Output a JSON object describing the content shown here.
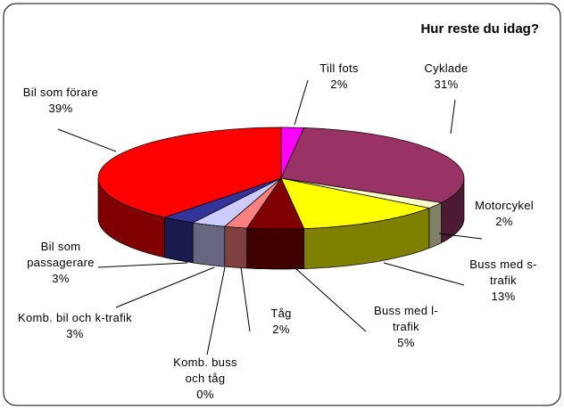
{
  "chart_data": {
    "type": "pie",
    "title": "Hur reste du idag?",
    "categories": [
      "Till fots",
      "Cyklade",
      "Motorcykel",
      "Buss med s-trafik",
      "Buss med l-trafik",
      "Tåg",
      "Komb. buss och tåg",
      "Komb. bil och k-trafik",
      "Bil som passagerare",
      "Bil som förare"
    ],
    "values": [
      2,
      31,
      2,
      13,
      5,
      2,
      0,
      3,
      3,
      39
    ],
    "value_labels": [
      "2%",
      "31%",
      "2%",
      "13%",
      "5%",
      "2%",
      "0%",
      "3%",
      "3%",
      "39%"
    ],
    "colors": [
      "#ff00ff",
      "#993366",
      "#ffffcc",
      "#ffff00",
      "#800000",
      "#ff8080",
      "#0066cc",
      "#ccccff",
      "#333399",
      "#ff0000"
    ]
  }
}
